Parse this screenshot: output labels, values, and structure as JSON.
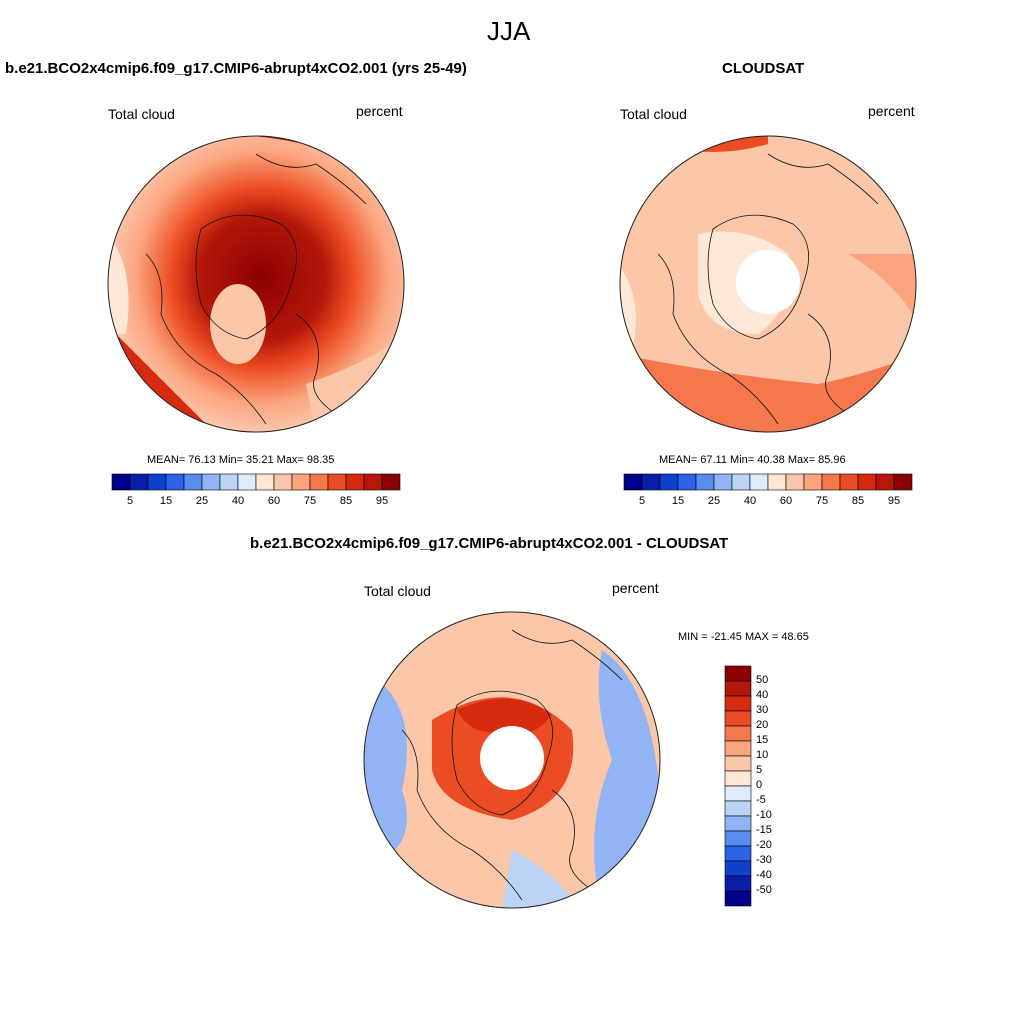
{
  "page": {
    "title": "JJA"
  },
  "panels": [
    {
      "id": "model",
      "title": "b.e21.BCO2x4cmip6.f09_g17.CMIP6-abrupt4xCO2.001 (yrs 25-49)",
      "left_label": "Total cloud",
      "right_label": "percent",
      "stats": "MEAN=  76.13  Min=  35.21  Max=  98.35"
    },
    {
      "id": "obs",
      "title": "CLOUDSAT",
      "left_label": "Total cloud",
      "right_label": "percent",
      "stats": "MEAN=  67.11  Min=  40.38  Max=  85.96"
    },
    {
      "id": "diff",
      "title": "b.e21.BCO2x4cmip6.f09_g17.CMIP6-abrupt4xCO2.001 - CLOUDSAT",
      "left_label": "Total cloud",
      "right_label": "percent",
      "stats": "MIN = -21.45 MAX =  48.65"
    }
  ],
  "colorbars": {
    "abs": {
      "colors": [
        "#00008b",
        "#0a1fa8",
        "#1040cc",
        "#2a62e8",
        "#5a8bef",
        "#92b4f4",
        "#bcd2f7",
        "#deebfa",
        "#fde7d6",
        "#fcc7a8",
        "#fba47e",
        "#f5774e",
        "#ec4c23",
        "#d52a0d",
        "#b5170a",
        "#8b0000"
      ],
      "tick_labels": [
        "5",
        "15",
        "25",
        "40",
        "60",
        "75",
        "85",
        "95"
      ]
    },
    "diff": {
      "colors": [
        "#8b0000",
        "#b5170a",
        "#d52a0d",
        "#ec4c23",
        "#f5774e",
        "#fba47e",
        "#fcc7a8",
        "#fde7d6",
        "#deebfa",
        "#bcd2f7",
        "#92b4f4",
        "#5a8bef",
        "#2a62e8",
        "#1040cc",
        "#0a1fa8",
        "#00008b"
      ],
      "tick_labels": [
        "50",
        "40",
        "30",
        "20",
        "15",
        "10",
        "5",
        "0",
        "-5",
        "-10",
        "-15",
        "-20",
        "-30",
        "-40",
        "-50"
      ]
    }
  }
}
